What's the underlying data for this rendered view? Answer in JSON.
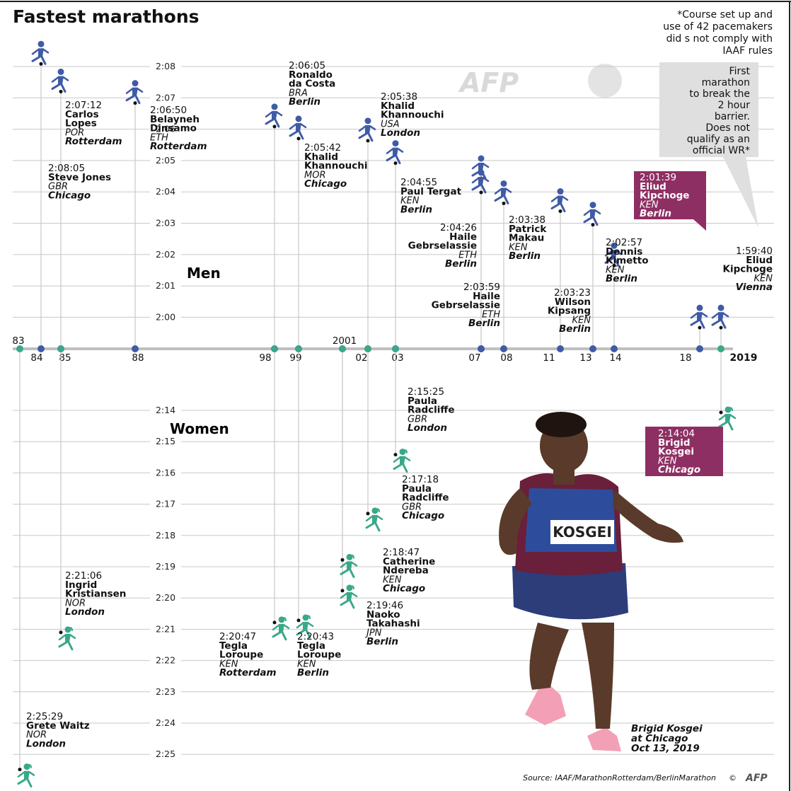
{
  "title": "Fastest marathons",
  "footnote": [
    "*Course  set up and",
    "use of 42 pacemakers",
    "did s not comply with",
    "IAAF rules"
  ],
  "callout": [
    "First",
    "marathon",
    "to break the",
    "2 hour",
    "barrier.",
    "Does not",
    "qualify as an",
    "official WR*"
  ],
  "source": "Source: IAAF/MarathonRotterdam/BerlinMarathon",
  "copyright": "©",
  "watermark": "AFP",
  "logo": "AFP",
  "photo_caption": [
    "Brigid Kosgei",
    "at Chicago",
    "Oct 13, 2019"
  ],
  "bib_text": "KOSGEI",
  "colors": {
    "men": "#3f5ba6",
    "women": "#3aa88a",
    "highlight": "#8e2f63",
    "grid": "#c8c8c8",
    "axis": "#bfbfbf"
  },
  "icons": {
    "men_marker": "male-runner-icon",
    "women_marker": "female-runner-icon"
  },
  "chart_data": {
    "type": "scatter",
    "title": "Fastest marathons",
    "x_axis_labels": [
      "83",
      "84",
      "85",
      "88",
      "98",
      "99",
      "2001",
      "02",
      "03",
      "07",
      "08",
      "11",
      "13",
      "14",
      "18",
      "2019"
    ],
    "men": {
      "label": "Men",
      "y_ticks": [
        "2:08",
        "2:07",
        "2:06",
        "2:05",
        "2:04",
        "2:03",
        "2:02",
        "2:01",
        "2:00"
      ],
      "records": [
        {
          "time": "2:08:05",
          "athlete": [
            "Steve Jones"
          ],
          "country": "GBR",
          "city": "Chicago"
        },
        {
          "time": "2:07:12",
          "athlete": [
            "Carlos",
            "Lopes"
          ],
          "country": "POR",
          "city": "Rotterdam"
        },
        {
          "time": "2:06:50",
          "athlete": [
            "Belayneh",
            "Dinsamo"
          ],
          "country": "ETH",
          "city": "Rotterdam"
        },
        {
          "time": "2:06:05",
          "athlete": [
            "Ronaldo",
            "da Costa"
          ],
          "country": "BRA",
          "city": "Berlin"
        },
        {
          "time": "2:05:42",
          "athlete": [
            "Khalid",
            "Khannouchi"
          ],
          "country": "MOR",
          "city": "Chicago"
        },
        {
          "time": "2:05:38",
          "athlete": [
            "Khalid",
            "Khannouchi"
          ],
          "country": "USA",
          "city": "London"
        },
        {
          "time": "2:04:55",
          "athlete": [
            "Paul Tergat"
          ],
          "country": "KEN",
          "city": "Berlin"
        },
        {
          "time": "2:04:26",
          "athlete": [
            "Haile",
            "Gebrselassie"
          ],
          "country": "ETH",
          "city": "Berlin"
        },
        {
          "time": "2:03:59",
          "athlete": [
            "Haile",
            "Gebrselassie"
          ],
          "country": "ETH",
          "city": "Berlin"
        },
        {
          "time": "2:03:38",
          "athlete": [
            "Patrick",
            "Makau"
          ],
          "country": "KEN",
          "city": "Berlin"
        },
        {
          "time": "2:03:23",
          "athlete": [
            "Wilson",
            "Kipsang"
          ],
          "country": "KEN",
          "city": "Berlin"
        },
        {
          "time": "2:02:57",
          "athlete": [
            "Dennis",
            "Kimetto"
          ],
          "country": "KEN",
          "city": "Berlin"
        },
        {
          "time": "2:01:39",
          "athlete": [
            "Eliud",
            "Kipchoge"
          ],
          "country": "KEN",
          "city": "Berlin",
          "highlight": true
        },
        {
          "time": "1:59:40",
          "athlete": [
            "Eliud",
            "Kipchoge"
          ],
          "country": "KEN",
          "city": "Vienna"
        }
      ]
    },
    "women": {
      "label": "Women",
      "y_ticks": [
        "2:14",
        "2:15",
        "2:16",
        "2:17",
        "2:18",
        "2:19",
        "2:20",
        "2:21",
        "2:22",
        "2:23",
        "2:24",
        "2:25"
      ],
      "records": [
        {
          "time": "2:25:29",
          "athlete": [
            "Grete Waitz"
          ],
          "country": "NOR",
          "city": "London"
        },
        {
          "time": "2:21:06",
          "athlete": [
            "Ingrid",
            "Kristiansen"
          ],
          "country": "NOR",
          "city": "London"
        },
        {
          "time": "2:20:47",
          "athlete": [
            "Tegla",
            "Loroupe"
          ],
          "country": "KEN",
          "city": "Rotterdam"
        },
        {
          "time": "2:20:43",
          "athlete": [
            "Tegla",
            "Loroupe"
          ],
          "country": "KEN",
          "city": "Berlin"
        },
        {
          "time": "2:19:46",
          "athlete": [
            "Naoko",
            "Takahashi"
          ],
          "country": "JPN",
          "city": "Berlin"
        },
        {
          "time": "2:18:47",
          "athlete": [
            "Catherine",
            "Ndereba"
          ],
          "country": "KEN",
          "city": "Chicago"
        },
        {
          "time": "2:17:18",
          "athlete": [
            "Paula",
            "Radcliffe"
          ],
          "country": "GBR",
          "city": "Chicago"
        },
        {
          "time": "2:15:25",
          "athlete": [
            "Paula",
            "Radcliffe"
          ],
          "country": "GBR",
          "city": "London"
        },
        {
          "time": "2:14:04",
          "athlete": [
            "Brigid",
            "Kosgei"
          ],
          "country": "KEN",
          "city": "Chicago",
          "highlight": true
        }
      ]
    }
  }
}
